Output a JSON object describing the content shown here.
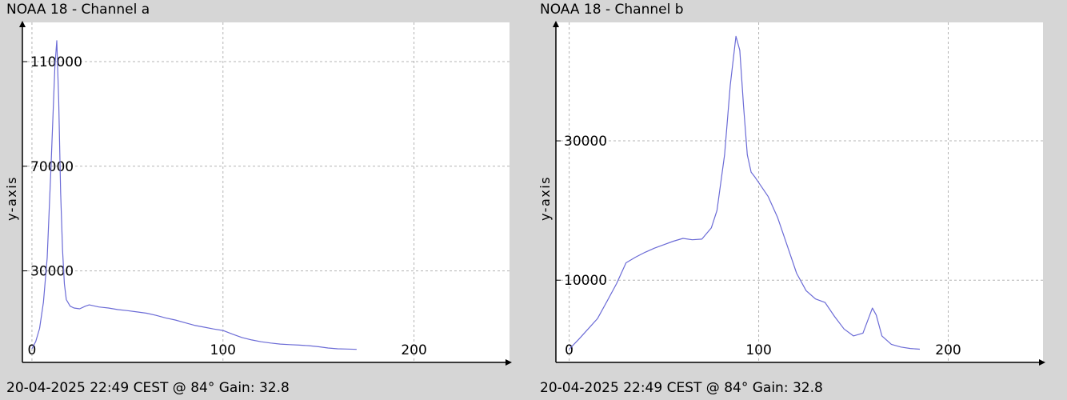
{
  "colors": {
    "background": "#d6d6d6",
    "plot_background": "#ffffff",
    "line": "#6b6bd6",
    "grid": "#b4b4b4",
    "axis": "#000000"
  },
  "panels": [
    {
      "title": "NOAA 18 - Channel a",
      "footer": "20-04-2025 22:49 CEST @ 84° Gain: 32.8"
    },
    {
      "title": "NOAA 18 - Channel b",
      "footer": "20-04-2025 22:49 CEST @ 84° Gain: 32.8"
    }
  ],
  "chart_data": [
    {
      "type": "line",
      "title": "NOAA 18 - Channel a",
      "xlabel": "",
      "ylabel": "y-axis",
      "xlim": [
        -5,
        250
      ],
      "ylim": [
        -5000,
        125000
      ],
      "xticks": [
        0,
        100,
        200
      ],
      "yticks": [
        30000,
        70000,
        110000
      ],
      "grid": true,
      "x": [
        0,
        2,
        4,
        6,
        8,
        10,
        12,
        13,
        14,
        15,
        16,
        17,
        18,
        20,
        22,
        25,
        28,
        30,
        35,
        40,
        45,
        50,
        55,
        60,
        65,
        70,
        75,
        80,
        85,
        90,
        95,
        100,
        105,
        110,
        115,
        120,
        125,
        130,
        135,
        140,
        145,
        150,
        155,
        160,
        165,
        170
      ],
      "series": [
        {
          "values": [
            200,
            3000,
            8000,
            18000,
            35000,
            70000,
            108000,
            118000,
            95000,
            60000,
            38000,
            25000,
            19000,
            16500,
            15800,
            15500,
            16500,
            17000,
            16200,
            15800,
            15200,
            14800,
            14300,
            13800,
            13000,
            12000,
            11200,
            10200,
            9200,
            8500,
            7800,
            7200,
            5800,
            4500,
            3600,
            2900,
            2400,
            2000,
            1800,
            1600,
            1400,
            1000,
            500,
            200,
            100,
            0
          ]
        }
      ]
    },
    {
      "type": "line",
      "title": "NOAA 18 - Channel b",
      "xlabel": "",
      "ylabel": "y-axis",
      "xlim": [
        -7,
        250
      ],
      "ylim": [
        -1800,
        47000
      ],
      "xticks": [
        0,
        100,
        200
      ],
      "yticks": [
        10000,
        30000
      ],
      "grid": true,
      "x": [
        0,
        5,
        10,
        15,
        20,
        25,
        30,
        35,
        40,
        45,
        50,
        55,
        60,
        65,
        70,
        75,
        78,
        82,
        85,
        88,
        90,
        92,
        94,
        96,
        98,
        100,
        105,
        110,
        115,
        120,
        125,
        130,
        135,
        140,
        145,
        150,
        155,
        160,
        162,
        165,
        170,
        175,
        180,
        185
      ],
      "series": [
        {
          "values": [
            100,
            1500,
            3000,
            4500,
            7000,
            9500,
            12500,
            13300,
            14000,
            14600,
            15100,
            15600,
            16000,
            15800,
            15900,
            17500,
            20000,
            28000,
            38000,
            45000,
            43000,
            35000,
            28000,
            25500,
            24800,
            24000,
            22000,
            19000,
            15000,
            11000,
            8500,
            7300,
            6800,
            4800,
            3000,
            2000,
            2400,
            6000,
            5000,
            2000,
            800,
            400,
            200,
            100
          ]
        }
      ]
    }
  ]
}
